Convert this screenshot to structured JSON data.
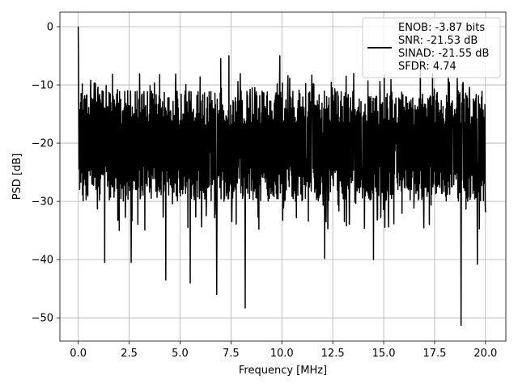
{
  "chart_data": {
    "type": "line",
    "title": "",
    "xlabel": "Frequency [MHz]",
    "ylabel": "PSD [dB]",
    "xlim": [
      -0.9,
      21.0
    ],
    "ylim": [
      -54.0,
      2.5
    ],
    "xticks": [
      0.0,
      2.5,
      5.0,
      7.5,
      10.0,
      12.5,
      15.0,
      17.5,
      20.0
    ],
    "xtick_labels": [
      "0.0",
      "2.5",
      "5.0",
      "7.5",
      "10.0",
      "12.5",
      "15.0",
      "17.5",
      "20.0"
    ],
    "yticks": [
      0,
      -10,
      -20,
      -30,
      -40,
      -50
    ],
    "ytick_labels": [
      "0",
      "−10",
      "−20",
      "−30",
      "−40",
      "−50"
    ],
    "grid": true,
    "legend_position": "top-right",
    "legend_lines": [
      "ENOB: -3.87 bits",
      "SNR: -21.53 dB",
      "SINAD: -21.55 dB",
      "SFDR: 4.74"
    ],
    "line_color": "#000000",
    "series": [
      {
        "x_start": 0.0,
        "x_end": 20.0,
        "noise_floor_mean": -20.5,
        "noise_band": [
          -30.0,
          -11.0
        ],
        "peaks": [
          {
            "x": 0.0,
            "y": 0.0
          },
          {
            "x": 0.02,
            "y": -6.0
          },
          {
            "x": 7.0,
            "y": -5.5
          },
          {
            "x": 7.4,
            "y": -5.0
          },
          {
            "x": 9.9,
            "y": -5.0
          },
          {
            "x": 16.8,
            "y": -5.6
          }
        ],
        "dips": [
          {
            "x": 1.3,
            "y": -40.5
          },
          {
            "x": 2.6,
            "y": -40.5
          },
          {
            "x": 4.3,
            "y": -43.5
          },
          {
            "x": 5.5,
            "y": -44.0
          },
          {
            "x": 6.8,
            "y": -46.0
          },
          {
            "x": 8.2,
            "y": -48.3
          },
          {
            "x": 12.1,
            "y": -39.8
          },
          {
            "x": 14.5,
            "y": -40.0
          },
          {
            "x": 18.8,
            "y": -51.3
          },
          {
            "x": 19.6,
            "y": -40.8
          }
        ]
      }
    ]
  }
}
